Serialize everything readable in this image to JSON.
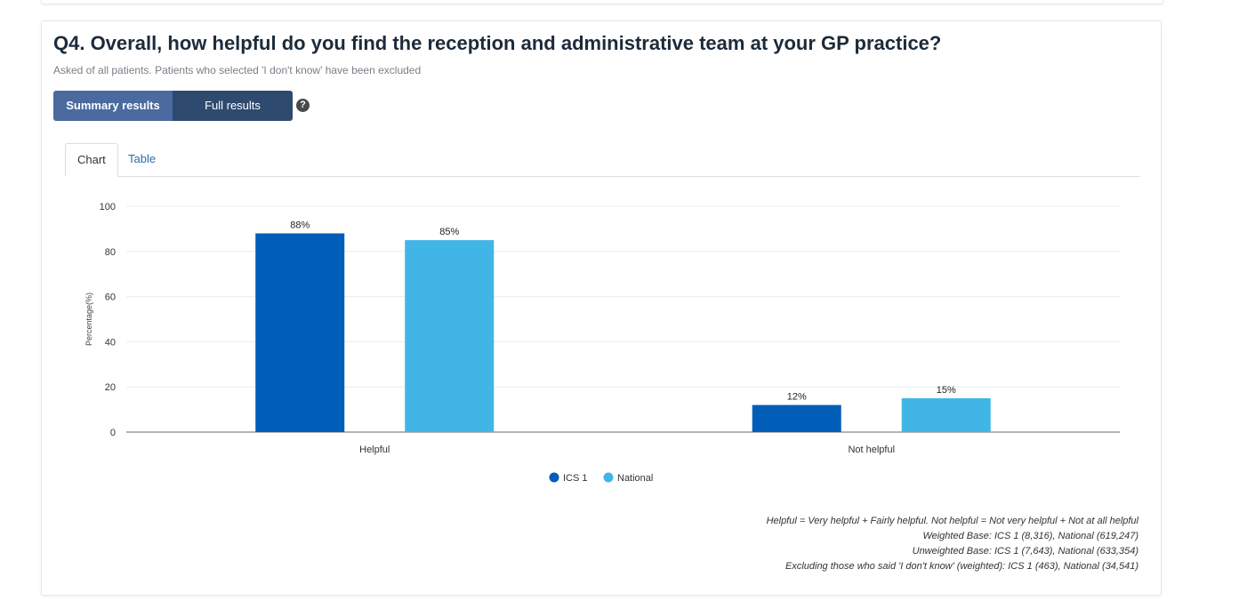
{
  "question": {
    "title": "Q4. Overall, how helpful do you find the reception and administrative team at your GP practice?",
    "subtitle": "Asked of all patients. Patients who selected 'I don't know' have been excluded"
  },
  "toggle": {
    "summary_label": "Summary results",
    "full_label": "Full results",
    "selected": "Summary results"
  },
  "help_icon": {
    "icon": "question-circle-icon",
    "glyph": "?"
  },
  "tabs": [
    {
      "label": "Chart",
      "active": true
    },
    {
      "label": "Table",
      "active": false
    }
  ],
  "colors": {
    "ics1": "#005eb8",
    "national": "#41b6e6",
    "accent": "#4a6aa0"
  },
  "chart_data": {
    "type": "bar",
    "categories": [
      "Helpful",
      "Not helpful"
    ],
    "series": [
      {
        "name": "ICS 1",
        "values": [
          88,
          12
        ],
        "labels": [
          "88%",
          "12%"
        ]
      },
      {
        "name": "National",
        "values": [
          85,
          15
        ],
        "labels": [
          "85%",
          "15%"
        ]
      }
    ],
    "ylabel": "Percentage(%)",
    "ylim": [
      0,
      100
    ],
    "yticks": [
      0,
      20,
      40,
      60,
      80,
      100
    ],
    "grid": true,
    "legend": "bottom-center"
  },
  "footnotes": [
    "Helpful = Very helpful + Fairly helpful. Not helpful = Not very helpful + Not at all helpful",
    "Weighted Base: ICS 1 (8,316), National (619,247)",
    "Unweighted Base: ICS 1 (7,643), National (633,354)",
    "Excluding those who said 'I don't know' (weighted): ICS 1 (463), National (34,541)"
  ]
}
